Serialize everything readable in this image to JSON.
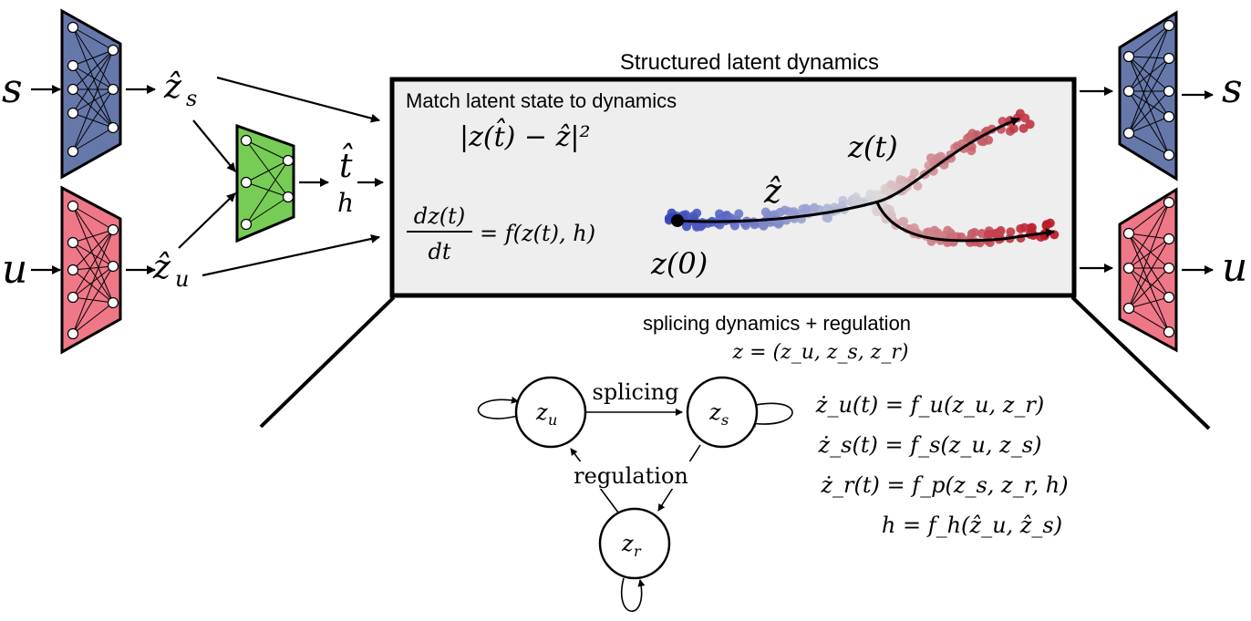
{
  "title": "Structured latent dynamics",
  "box_heading": "Match latent state to dynamics",
  "inputs": {
    "s": "s",
    "u": "u"
  },
  "outputs": {
    "s": "s",
    "u": "u"
  },
  "encoded": {
    "zs": "ẑ",
    "zs_sub": "s",
    "zu": "ẑ",
    "zu_sub": "u"
  },
  "time_encoder": {
    "t_hat": "t̂",
    "h": "h"
  },
  "box_formulas": {
    "loss": "|z(t̂) − ẑ|²",
    "ode_num": "dz(t)",
    "ode_den": "dt",
    "ode_rhs": "= f(z(t), h)"
  },
  "trajectory_labels": {
    "z0": "z(0)",
    "zhat": "ẑ",
    "zt": "z(t)"
  },
  "lower": {
    "heading": "splicing dynamics + regulation",
    "state_def": "z = (z_u, z_s, z_r)",
    "node_u": "z",
    "node_u_sub": "u",
    "node_s": "z",
    "node_s_sub": "s",
    "node_r": "z",
    "node_r_sub": "r",
    "edge_splicing": "splicing",
    "edge_regulation": "regulation"
  },
  "equations": [
    "ż_u(t) = f_u(z_u, z_r)",
    "ż_s(t) = f_s(z_u, z_s)",
    "ż_r(t) = f_p(z_s, z_r, h)",
    "h = f_h(ẑ_u, ẑ_s)"
  ],
  "colors": {
    "encoder_s": "#6677aa",
    "encoder_u": "#ee7788",
    "encoder_t": "#77cc55",
    "box_fill": "#eeeeee",
    "traj_start": "#3344bb",
    "traj_mid": "#dddddd",
    "traj_end": "#bb1122"
  }
}
